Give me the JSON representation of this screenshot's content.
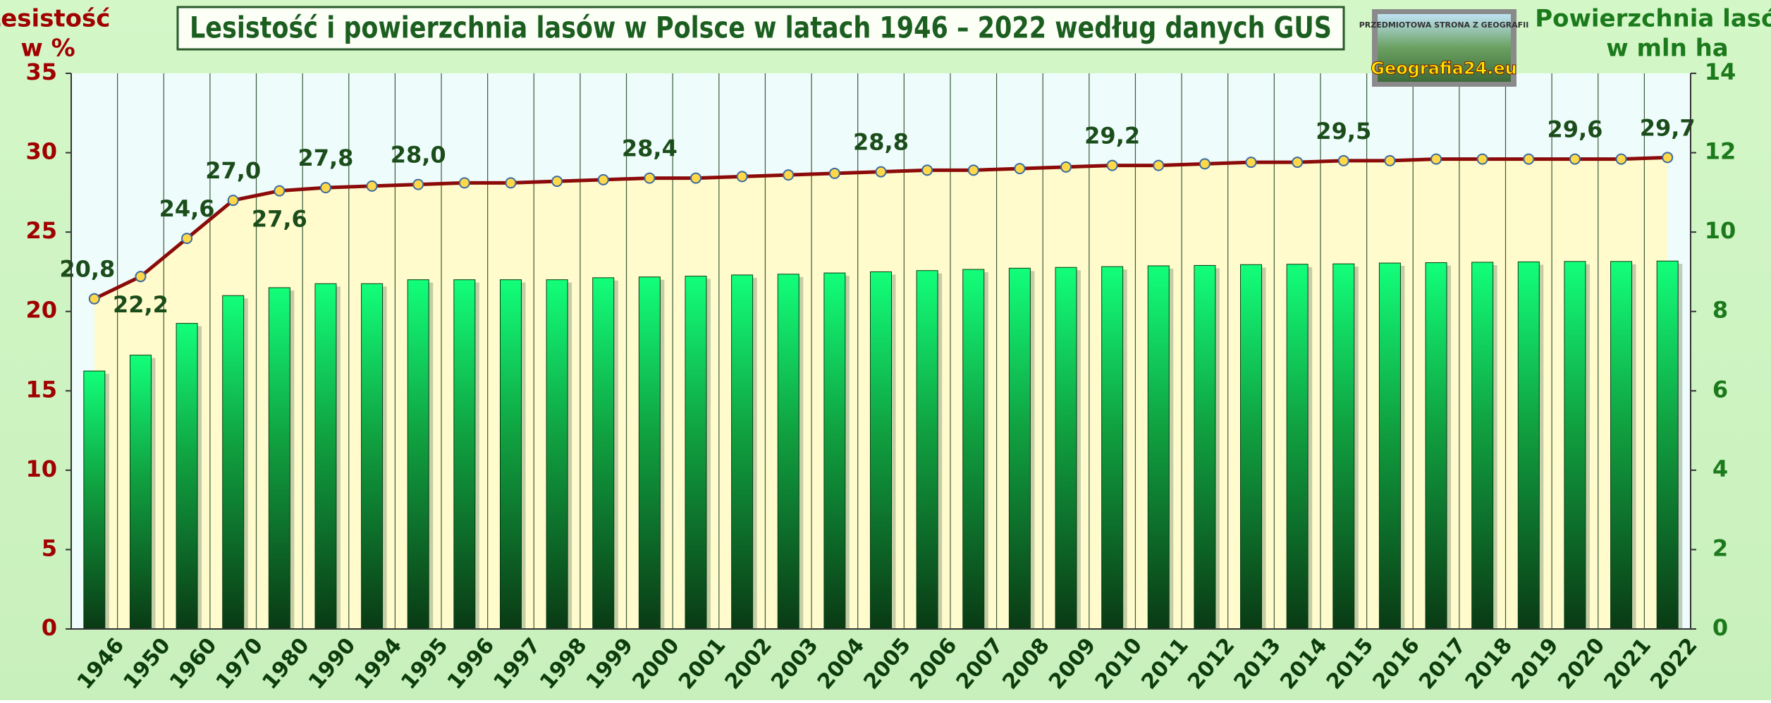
{
  "chart_data": {
    "type": "bar-line",
    "title": "Lesistość i powierzchnia lasów w Polsce w latach 1946 – 2022 według danych GUS",
    "ylabel": [
      "Lesistość",
      "w %"
    ],
    "y2label": [
      "Powierzchnia lasów",
      "w mln ha"
    ],
    "logo": [
      "PRZEDMIOTOWA STRONA Z GEOGRAFII",
      "Geografia24.eu"
    ],
    "categories": [
      "1946",
      "1950",
      "1960",
      "1970",
      "1980",
      "1990",
      "1994",
      "1995",
      "1996",
      "1997",
      "1998",
      "1999",
      "2000",
      "2001",
      "2002",
      "2003",
      "2004",
      "2005",
      "2006",
      "2007",
      "2008",
      "2009",
      "2010",
      "2011",
      "2012",
      "2013",
      "2014",
      "2015",
      "2016",
      "2017",
      "2018",
      "2019",
      "2020",
      "2021",
      "2022"
    ],
    "series": [
      {
        "name": "Powierzchnia lasów",
        "type": "bar",
        "axis": "y2",
        "color": "#0a3a14",
        "values": [
          6.5,
          6.9,
          7.7,
          8.4,
          8.6,
          8.7,
          8.7,
          8.8,
          8.8,
          8.8,
          8.8,
          8.85,
          8.87,
          8.89,
          8.92,
          8.94,
          8.97,
          9.0,
          9.03,
          9.06,
          9.09,
          9.11,
          9.13,
          9.15,
          9.16,
          9.18,
          9.19,
          9.2,
          9.22,
          9.23,
          9.24,
          9.25,
          9.26,
          9.26,
          9.27
        ]
      },
      {
        "name": "Lesistość",
        "type": "line",
        "axis": "y",
        "color": "#8b0a0a",
        "values": [
          20.8,
          22.2,
          24.6,
          27.0,
          27.6,
          27.8,
          27.9,
          28.0,
          28.1,
          28.1,
          28.2,
          28.3,
          28.4,
          28.4,
          28.5,
          28.6,
          28.7,
          28.8,
          28.9,
          28.9,
          29.0,
          29.1,
          29.2,
          29.2,
          29.3,
          29.4,
          29.4,
          29.5,
          29.5,
          29.6,
          29.6,
          29.6,
          29.6,
          29.6,
          29.7
        ],
        "value_labels": [
          "20,8",
          "22,2",
          "24,6",
          "27,0",
          "27,6",
          "27,8",
          null,
          "28,0",
          null,
          null,
          null,
          null,
          "28,4",
          null,
          null,
          null,
          null,
          "28,8",
          null,
          null,
          null,
          null,
          "29,2",
          null,
          null,
          null,
          null,
          "29,5",
          null,
          null,
          null,
          null,
          "29,6",
          null,
          "29,7"
        ]
      }
    ],
    "ylim": [
      0,
      35
    ],
    "yticks": [
      0,
      5,
      10,
      15,
      20,
      25,
      30,
      35
    ],
    "y2lim": [
      0,
      14
    ],
    "y2ticks": [
      0,
      2,
      4,
      6,
      8,
      10,
      12,
      14
    ]
  }
}
